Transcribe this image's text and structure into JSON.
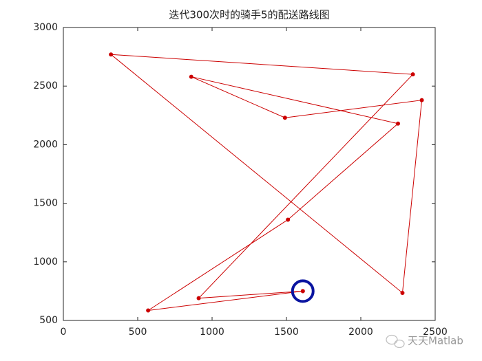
{
  "chart_data": {
    "type": "line",
    "title": "迭代300次时的骑手5的配送路线图",
    "x": [
      1610,
      910,
      2350,
      320,
      2280,
      2410,
      1490,
      860,
      2250,
      1510,
      570,
      1610
    ],
    "values": [
      750,
      690,
      2600,
      2770,
      735,
      2380,
      2230,
      2580,
      2180,
      1360,
      585,
      750
    ],
    "color": "#cc0000",
    "start_marker_color": "#0a14a0",
    "xlim": [
      0,
      2500
    ],
    "xticks": [
      0,
      500,
      1000,
      1500,
      2000,
      2500
    ],
    "ylim": [
      500,
      3000
    ],
    "yticks": [
      500,
      1000,
      1500,
      2000,
      2500,
      3000
    ],
    "grid": false
  },
  "watermark": "天天Matlab"
}
